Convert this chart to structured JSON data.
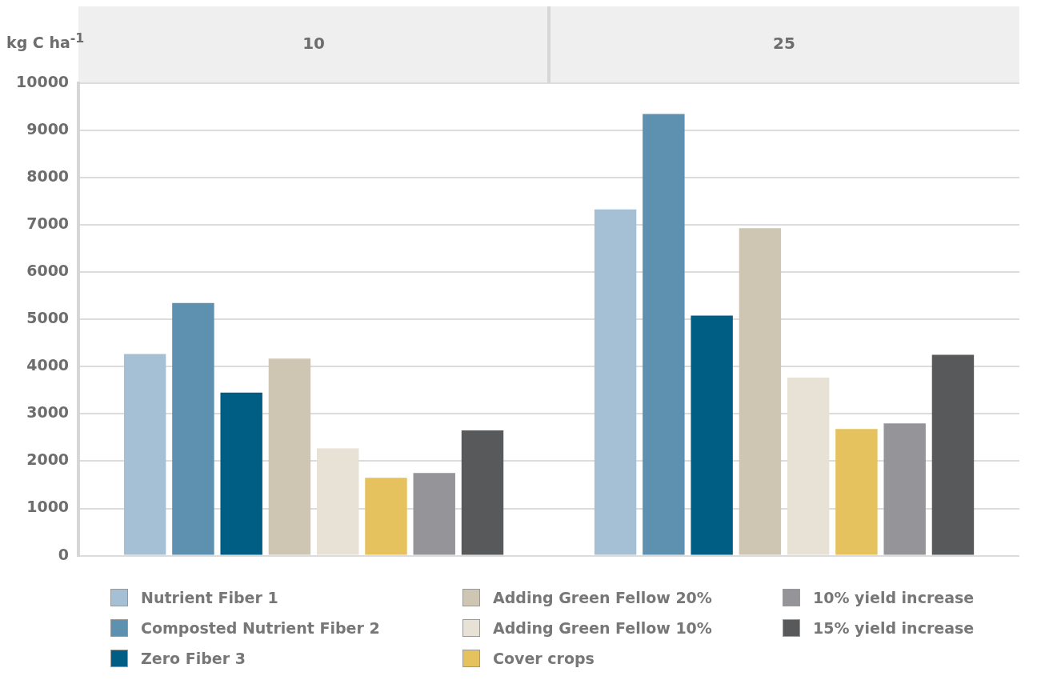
{
  "chart_data": {
    "type": "bar",
    "ylabel": "kg C ha$^{-1}$",
    "categories": [
      "10",
      "25"
    ],
    "series": [
      {
        "name": "Nutrient Fiber 1",
        "color": "#a5bfd4",
        "values": [
          4270,
          7330
        ]
      },
      {
        "name": "Composted Nutrient Fiber 2",
        "color": "#5e90b0",
        "values": [
          5350,
          9350
        ]
      },
      {
        "name": "Zero Fiber 3",
        "color": "#005e85",
        "values": [
          3450,
          5080
        ]
      },
      {
        "name": "Adding Green Fellow 20%",
        "color": "#cfc5b3",
        "values": [
          4170,
          6930
        ]
      },
      {
        "name": "Adding Green Fellow 10%",
        "color": "#e8e1d6",
        "values": [
          2270,
          3770
        ]
      },
      {
        "name": "Cover crops",
        "color": "#e5c25d",
        "values": [
          1650,
          2680
        ]
      },
      {
        "name": "10% yield increase",
        "color": "#959599",
        "values": [
          1750,
          2800
        ]
      },
      {
        "name": "15% yield increase",
        "color": "#58595b",
        "values": [
          2650,
          4250
        ]
      }
    ],
    "ylim": [
      0,
      10000
    ],
    "yticks": [
      0,
      1000,
      2000,
      3000,
      4000,
      5000,
      6000,
      7000,
      8000,
      9000,
      10000
    ],
    "grid": "y",
    "legend": "bottom"
  }
}
